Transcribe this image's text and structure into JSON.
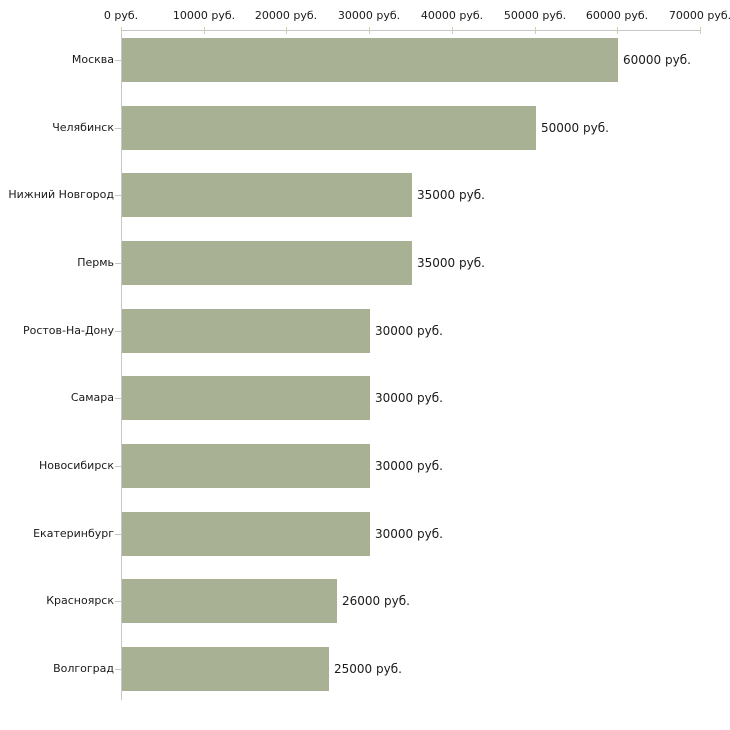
{
  "chart_data": {
    "type": "bar",
    "orientation": "horizontal",
    "title": "",
    "xlabel": "",
    "ylabel": "",
    "unit": "руб.",
    "categories": [
      "Москва",
      "Челябинск",
      "Нижний Новгород",
      "Пермь",
      "Ростов-На-Дону",
      "Самара",
      "Новосибирск",
      "Екатеринбург",
      "Красноярск",
      "Волгоград"
    ],
    "values": [
      60000,
      50000,
      35000,
      35000,
      30000,
      30000,
      30000,
      30000,
      26000,
      25000
    ],
    "bar_labels": [
      "60000 руб.",
      "50000 руб.",
      "35000 руб.",
      "35000 руб.",
      "30000 руб.",
      "30000 руб.",
      "30000 руб.",
      "30000 руб.",
      "26000 руб.",
      "25000 руб."
    ],
    "x_ticks": [
      0,
      10000,
      20000,
      30000,
      40000,
      50000,
      60000,
      70000
    ],
    "x_tick_labels": [
      "0 руб.",
      "10000 руб.",
      "20000 руб.",
      "30000 руб.",
      "40000 руб.",
      "50000 руб.",
      "60000 руб.",
      "70000 руб."
    ],
    "xlim": [
      0,
      70000
    ],
    "grid": false,
    "legend": false,
    "axis_position": "top",
    "colors": {
      "bar": "#a9b195",
      "axis_line": "#c6c6c6",
      "tick_mark": "#cdd1b4",
      "text": "#1a1a1a",
      "background": "#ffffff"
    }
  }
}
